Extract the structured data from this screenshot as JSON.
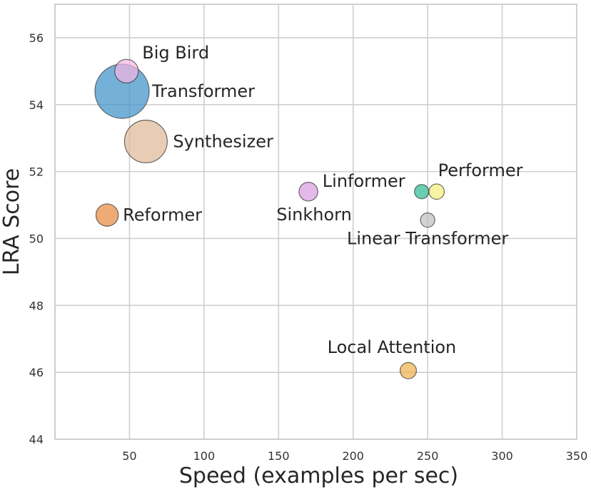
{
  "chart_data": {
    "type": "scatter",
    "title": "",
    "xlabel": "Speed (examples per sec)",
    "ylabel": "LRA Score",
    "xlim": [
      0,
      350
    ],
    "ylim": [
      44,
      57
    ],
    "xticks": [
      50,
      100,
      150,
      200,
      250,
      300,
      350
    ],
    "yticks": [
      44,
      46,
      48,
      50,
      52,
      54,
      56
    ],
    "grid": true,
    "marker_size_encodes": "memory footprint",
    "points": [
      {
        "label": "Big Bird",
        "x": 48,
        "y": 55.0,
        "size": 0.19,
        "color": "#f7b6e3"
      },
      {
        "label": "Transformer",
        "x": 45,
        "y": 54.4,
        "size": 1.0,
        "color": "#3a8fc7"
      },
      {
        "label": "Synthesizer",
        "x": 61,
        "y": 52.9,
        "size": 0.62,
        "color": "#deb894"
      },
      {
        "label": "Reformer",
        "x": 35,
        "y": 50.7,
        "size": 0.17,
        "color": "#e8883a"
      },
      {
        "label": "Sinkhorn",
        "x": 170,
        "y": 51.4,
        "size": 0.12,
        "color": "#d89be0"
      },
      {
        "label": "Linformer",
        "x": 246,
        "y": 51.4,
        "size": 0.07,
        "color": "#2bb892"
      },
      {
        "label": "Performer",
        "x": 256,
        "y": 51.4,
        "size": 0.08,
        "color": "#f3ef79"
      },
      {
        "label": "Linear Transformer",
        "x": 250,
        "y": 50.55,
        "size": 0.07,
        "color": "#bfbfbf"
      },
      {
        "label": "Local Attention",
        "x": 237,
        "y": 46.05,
        "size": 0.09,
        "color": "#f0b14a"
      }
    ]
  }
}
